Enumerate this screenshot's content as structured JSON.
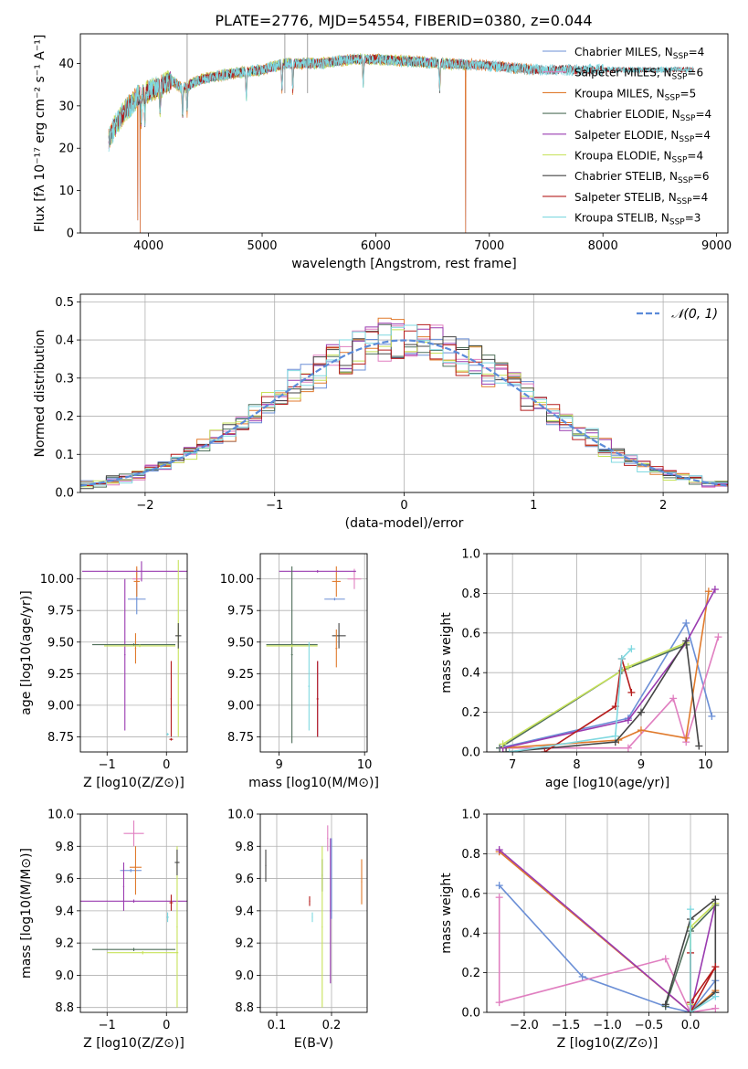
{
  "page_title": "PLATE=2776, MJD=54554, FIBERID=0380, z=0.044",
  "chart_data": [
    {
      "id": "spectrum",
      "type": "line",
      "title": "PLATE=2776, MJD=54554, FIBERID=0380, z=0.044",
      "xlabel": "wavelength [Angstrom, rest frame]",
      "ylabel": "Flux [f_λ 10^-17 erg cm^-2 s^-1 A^-1]",
      "xlim": [
        3400,
        9100
      ],
      "ylim": [
        0,
        47
      ],
      "xticks": [
        4000,
        5000,
        6000,
        7000,
        8000,
        9000
      ],
      "yticks": [
        0,
        10,
        20,
        30,
        40
      ],
      "grid": false,
      "legend": "upper right",
      "continuum": {
        "x": [
          3650,
          3700,
          3800,
          3900,
          4000,
          4100,
          4200,
          4300,
          4400,
          4500,
          4700,
          5000,
          5200,
          5500,
          5800,
          6000,
          6300,
          6600,
          7000,
          7400
        ],
        "y": [
          22,
          25,
          29,
          32,
          33.5,
          34.5,
          36,
          34,
          35.5,
          36.5,
          37.5,
          38.5,
          40,
          40,
          41,
          41,
          40.5,
          40,
          39.5,
          38.5
        ]
      },
      "sharp_dips": [
        [
          3925,
          0
        ],
        [
          3905,
          3
        ],
        [
          6790,
          0
        ],
        [
          7410,
          0
        ]
      ],
      "series": [
        {
          "name": "Chabrier MILES, N_SSP=4",
          "color": "#6b8fd6",
          "xmax": 7400
        },
        {
          "name": "Salpeter MILES, N_SSP=6",
          "color": "#e07fc0",
          "xmax": 7400
        },
        {
          "name": "Kroupa MILES, N_SSP=5",
          "color": "#e07a2c",
          "xmax": 7400
        },
        {
          "name": "Chabrier ELODIE, N_SSP=4",
          "color": "#4f6f5a",
          "xmax": 6800
        },
        {
          "name": "Salpeter ELODIE, N_SSP=4",
          "color": "#9a3bb0",
          "xmax": 6800
        },
        {
          "name": "Kroupa ELODIE, N_SSP=4",
          "color": "#c7e25a",
          "xmax": 6800
        },
        {
          "name": "Chabrier STELIB, N_SSP=6",
          "color": "#444444",
          "xmax": 8800
        },
        {
          "name": "Salpeter STELIB, N_SSP=4",
          "color": "#b51d1d",
          "xmax": 8800
        },
        {
          "name": "Kroupa STELIB, N_SSP=3",
          "color": "#7fd8e0",
          "xmax": 8800
        }
      ]
    },
    {
      "id": "residuals",
      "type": "line",
      "xlabel": "(data-model)/error",
      "ylabel": "Normed distribution",
      "xlim": [
        -2.5,
        2.5
      ],
      "ylim": [
        0,
        0.52
      ],
      "xticks": [
        -2,
        -1,
        0,
        1,
        2
      ],
      "yticks": [
        0.0,
        0.1,
        0.2,
        0.3,
        0.4,
        0.5
      ],
      "grid": true,
      "legend": "upper right",
      "reference": {
        "name": "𝒩(0, 1)",
        "color": "#5b8bd9",
        "mean": 0,
        "sigma": 1
      },
      "bin_width": 0.1
    },
    {
      "id": "age_vs_Z",
      "type": "scatter",
      "xlabel": "Z [log10(Z/Z⊙)]",
      "ylabel": "age [log10(age/yr)]",
      "xlim": [
        -1.45,
        0.35
      ],
      "ylim": [
        8.63,
        10.2
      ],
      "xticks": [
        -1,
        0
      ],
      "yticks": [
        8.75,
        9.0,
        9.25,
        9.5,
        9.75,
        10.0
      ],
      "grid": true,
      "points": [
        {
          "color": "#6b8fd6",
          "x": -0.5,
          "xerr": 0.15,
          "y": 9.84,
          "yerr": 0.12
        },
        {
          "color": "#e07fc0",
          "x": -0.5,
          "xerr": 0.07,
          "y": 10.0,
          "yerr": 0.08
        },
        {
          "color": "#e07a2c",
          "x": -0.5,
          "xerr": 0.05,
          "y": 9.98,
          "yerr": 0.12
        },
        {
          "color": "#9a3bb0",
          "x": -0.42,
          "xerr": 1.0,
          "y": 10.06,
          "yerr": 0.08
        },
        {
          "color": "#9a3bb0",
          "x": -0.7,
          "xerr": 0.01,
          "y": 9.4,
          "yerr": 0.6
        },
        {
          "color": "#e07a2c",
          "x": -0.52,
          "xerr": 0.01,
          "y": 9.45,
          "yerr": 0.12
        },
        {
          "color": "#4f6f5a",
          "x": -0.55,
          "xerr": 0.7,
          "y": 9.48,
          "yerr": 0.01
        },
        {
          "color": "#c7e25a",
          "x": -0.45,
          "xerr": 0.6,
          "y": 9.47,
          "yerr": 0.01
        },
        {
          "color": "#c7e25a",
          "x": 0.2,
          "xerr": 0.01,
          "y": 9.45,
          "yerr": 0.7
        },
        {
          "color": "#444444",
          "x": 0.2,
          "xerr": 0.05,
          "y": 9.55,
          "yerr": 0.1
        },
        {
          "color": "#b51d1d",
          "x": 0.08,
          "xerr": 0.01,
          "y": 9.05,
          "yerr": 0.3
        },
        {
          "color": "#b51d1d",
          "x": 0.08,
          "xerr": 0.03,
          "y": 8.73,
          "yerr": 0.01
        },
        {
          "color": "#7fd8e0",
          "x": 0.02,
          "xerr": 0.02,
          "y": 8.77,
          "yerr": 0.01
        }
      ]
    },
    {
      "id": "age_vs_mass",
      "type": "scatter",
      "xlabel": "mass [log10(M/M⊙)]",
      "ylabel": "",
      "xlim": [
        8.78,
        10.03
      ],
      "ylim": [
        8.63,
        10.2
      ],
      "xticks": [
        9,
        10
      ],
      "yticks": [
        8.75,
        9.0,
        9.25,
        9.5,
        9.75,
        10.0
      ],
      "grid": true,
      "points": [
        {
          "color": "#6b8fd6",
          "x": 9.65,
          "xerr": 0.12,
          "y": 9.84,
          "yerr": 0.01
        },
        {
          "color": "#e07fc0",
          "x": 9.88,
          "xerr": 0.08,
          "y": 10.0,
          "yerr": 0.08
        },
        {
          "color": "#e07a2c",
          "x": 9.67,
          "xerr": 0.05,
          "y": 9.98,
          "yerr": 0.12
        },
        {
          "color": "#9a3bb0",
          "x": 9.45,
          "xerr": 0.45,
          "y": 10.06,
          "yerr": 0.01
        },
        {
          "color": "#9a3bb0",
          "x": 9.45,
          "xerr": 0.01,
          "y": 9.05,
          "yerr": 0.3
        },
        {
          "color": "#4f6f5a",
          "x": 9.15,
          "xerr": 0.01,
          "y": 9.4,
          "yerr": 0.7
        },
        {
          "color": "#4f6f5a",
          "x": 9.15,
          "xerr": 0.3,
          "y": 9.48,
          "yerr": 0.01
        },
        {
          "color": "#c7e25a",
          "x": 9.15,
          "xerr": 0.3,
          "y": 9.47,
          "yerr": 0.01
        },
        {
          "color": "#444444",
          "x": 9.7,
          "xerr": 0.08,
          "y": 9.55,
          "yerr": 0.1
        },
        {
          "color": "#b51d1d",
          "x": 9.45,
          "xerr": 0.01,
          "y": 9.05,
          "yerr": 0.3
        },
        {
          "color": "#7fd8e0",
          "x": 9.35,
          "xerr": 0.01,
          "y": 9.15,
          "yerr": 0.35
        },
        {
          "color": "#e07a2c",
          "x": 9.67,
          "xerr": 0.01,
          "y": 9.45,
          "yerr": 0.15
        }
      ]
    },
    {
      "id": "weight_vs_age",
      "type": "line",
      "xlabel": "age [log10(age/yr)]",
      "ylabel": "mass weight",
      "xlim": [
        6.6,
        10.35
      ],
      "ylim": [
        0,
        1.0
      ],
      "xticks": [
        7,
        8,
        9,
        10
      ],
      "yticks": [
        0.0,
        0.2,
        0.4,
        0.6,
        0.8,
        1.0
      ],
      "grid": true,
      "series": [
        {
          "color": "#6b8fd6",
          "x": [
            6.8,
            8.8,
            9.7,
            10.1
          ],
          "y": [
            0.02,
            0.17,
            0.65,
            0.18
          ]
        },
        {
          "color": "#e07fc0",
          "x": [
            6.85,
            8.8,
            9.5,
            9.7,
            10.2
          ],
          "y": [
            0.02,
            0.02,
            0.27,
            0.05,
            0.58
          ]
        },
        {
          "color": "#e07a2c",
          "x": [
            6.85,
            8.65,
            9.0,
            9.7,
            10.05
          ],
          "y": [
            0.02,
            0.06,
            0.11,
            0.07,
            0.81
          ]
        },
        {
          "color": "#4f6f5a",
          "x": [
            6.8,
            8.7,
            9.7
          ],
          "y": [
            0.02,
            0.41,
            0.54
          ]
        },
        {
          "color": "#9a3bb0",
          "x": [
            6.85,
            8.8,
            9.7,
            10.15
          ],
          "y": [
            0.02,
            0.16,
            0.55,
            0.82
          ]
        },
        {
          "color": "#c7e25a",
          "x": [
            6.85,
            8.8,
            9.7
          ],
          "y": [
            0.04,
            0.43,
            0.55
          ]
        },
        {
          "color": "#444444",
          "x": [
            6.9,
            8.6,
            9.0,
            9.7,
            9.9
          ],
          "y": [
            0.0,
            0.05,
            0.2,
            0.56,
            0.03
          ]
        },
        {
          "color": "#b51d1d",
          "x": [
            7.5,
            8.6,
            8.7,
            8.85
          ],
          "y": [
            0.0,
            0.23,
            0.47,
            0.3
          ]
        },
        {
          "color": "#7fd8e0",
          "x": [
            6.95,
            8.6,
            8.7,
            8.85
          ],
          "y": [
            0.0,
            0.08,
            0.47,
            0.52
          ]
        }
      ]
    },
    {
      "id": "mass_vs_Z",
      "type": "scatter",
      "xlabel": "Z [log10(Z/Z⊙)]",
      "ylabel": "mass [log10(M/M⊙)]",
      "xlim": [
        -1.45,
        0.35
      ],
      "ylim": [
        8.77,
        10.0
      ],
      "xticks": [
        -1,
        0
      ],
      "yticks": [
        8.8,
        9.0,
        9.2,
        9.4,
        9.6,
        9.8,
        10.0
      ],
      "grid": true,
      "points": [
        {
          "color": "#e07fc0",
          "x": -0.55,
          "xerr": 0.17,
          "y": 9.88,
          "yerr": 0.08
        },
        {
          "color": "#6b8fd6",
          "x": -0.6,
          "xerr": 0.18,
          "y": 9.65,
          "yerr": 0.01
        },
        {
          "color": "#e07a2c",
          "x": -0.52,
          "xerr": 0.1,
          "y": 9.67,
          "yerr": 0.01
        },
        {
          "color": "#9a3bb0",
          "x": -0.72,
          "xerr": 0.01,
          "y": 9.55,
          "yerr": 0.15
        },
        {
          "color": "#9a3bb0",
          "x": -0.55,
          "xerr": 0.9,
          "y": 9.46,
          "yerr": 0.01
        },
        {
          "color": "#e07a2c",
          "x": -0.52,
          "xerr": 0.01,
          "y": 9.65,
          "yerr": 0.15
        },
        {
          "color": "#4f6f5a",
          "x": -0.55,
          "xerr": 0.7,
          "y": 9.16,
          "yerr": 0.01
        },
        {
          "color": "#c7e25a",
          "x": -0.4,
          "xerr": 0.6,
          "y": 9.14,
          "yerr": 0.01
        },
        {
          "color": "#c7e25a",
          "x": 0.18,
          "xerr": 0.01,
          "y": 9.3,
          "yerr": 0.5
        },
        {
          "color": "#444444",
          "x": 0.18,
          "xerr": 0.04,
          "y": 9.7,
          "yerr": 0.08
        },
        {
          "color": "#b51d1d",
          "x": 0.08,
          "xerr": 0.03,
          "y": 9.45,
          "yerr": 0.05
        },
        {
          "color": "#7fd8e0",
          "x": 0.02,
          "xerr": 0.02,
          "y": 9.36,
          "yerr": 0.03
        }
      ]
    },
    {
      "id": "mass_vs_EBV",
      "type": "scatter",
      "xlabel": "E(B-V)",
      "ylabel": "",
      "xlim": [
        0.07,
        0.265
      ],
      "ylim": [
        8.77,
        10.0
      ],
      "xticks": [
        0.1,
        0.2
      ],
      "yticks": [
        8.8,
        9.0,
        9.2,
        9.4,
        9.6,
        9.8,
        10.0
      ],
      "grid": true,
      "points": [
        {
          "color": "#444444",
          "x": 0.08,
          "y": 9.68,
          "yerr": 0.1
        },
        {
          "color": "#b51d1d",
          "x": 0.16,
          "y": 9.46,
          "yerr": 0.03
        },
        {
          "color": "#7fd8e0",
          "x": 0.165,
          "y": 9.36,
          "yerr": 0.03
        },
        {
          "color": "#4f6f5a",
          "x": 0.183,
          "y": 9.62,
          "yerr": 0.1
        },
        {
          "color": "#c7e25a",
          "x": 0.183,
          "y": 9.3,
          "yerr": 0.5
        },
        {
          "color": "#e07fc0",
          "x": 0.193,
          "y": 9.85,
          "yerr": 0.08
        },
        {
          "color": "#9a3bb0",
          "x": 0.198,
          "y": 9.4,
          "yerr": 0.45
        },
        {
          "color": "#6b8fd6",
          "x": 0.2,
          "y": 9.6,
          "yerr": 0.25
        },
        {
          "color": "#e07a2c",
          "x": 0.255,
          "y": 9.58,
          "yerr": 0.14
        }
      ]
    },
    {
      "id": "weight_vs_Z",
      "type": "line",
      "xlabel": "Z [log10(Z/Z⊙)]",
      "ylabel": "mass weight",
      "xlim": [
        -2.45,
        0.45
      ],
      "ylim": [
        0,
        1.0
      ],
      "xticks": [
        -2.0,
        -1.5,
        -1.0,
        -0.5,
        0.0
      ],
      "yticks": [
        0.0,
        0.2,
        0.4,
        0.6,
        0.8,
        1.0
      ],
      "grid": true,
      "series": [
        {
          "color": "#6b8fd6",
          "x": [
            -2.3,
            -1.3,
            -0.3,
            0.0,
            0.3
          ],
          "y": [
            0.64,
            0.18,
            0.03,
            0.0,
            0.16
          ]
        },
        {
          "color": "#e07fc0",
          "x": [
            -2.3,
            -2.3,
            -0.3,
            0.0,
            0.3
          ],
          "y": [
            0.58,
            0.05,
            0.27,
            0.0,
            0.02
          ]
        },
        {
          "color": "#e07a2c",
          "x": [
            -2.3,
            0.0,
            0.3
          ],
          "y": [
            0.81,
            0.0,
            0.11
          ]
        },
        {
          "color": "#4f6f5a",
          "x": [
            -0.3,
            0.0,
            0.3
          ],
          "y": [
            0.03,
            0.41,
            0.54
          ]
        },
        {
          "color": "#9a3bb0",
          "x": [
            -2.3,
            0.0,
            0.3
          ],
          "y": [
            0.82,
            0.0,
            0.55
          ]
        },
        {
          "color": "#c7e25a",
          "x": [
            0.0,
            0.0,
            0.3
          ],
          "y": [
            0.04,
            0.43,
            0.55
          ]
        },
        {
          "color": "#444444",
          "x": [
            -0.3,
            0.0,
            0.3,
            0.3,
            0.0
          ],
          "y": [
            0.04,
            0.47,
            0.57,
            0.1,
            0.0
          ]
        },
        {
          "color": "#b51d1d",
          "x": [
            0.0,
            0.0,
            0.3,
            0.0
          ],
          "y": [
            0.3,
            0.0,
            0.23,
            0.05
          ]
        },
        {
          "color": "#7fd8e0",
          "x": [
            0.0,
            0.0,
            0.3
          ],
          "y": [
            0.52,
            0.0,
            0.08
          ]
        }
      ]
    }
  ]
}
